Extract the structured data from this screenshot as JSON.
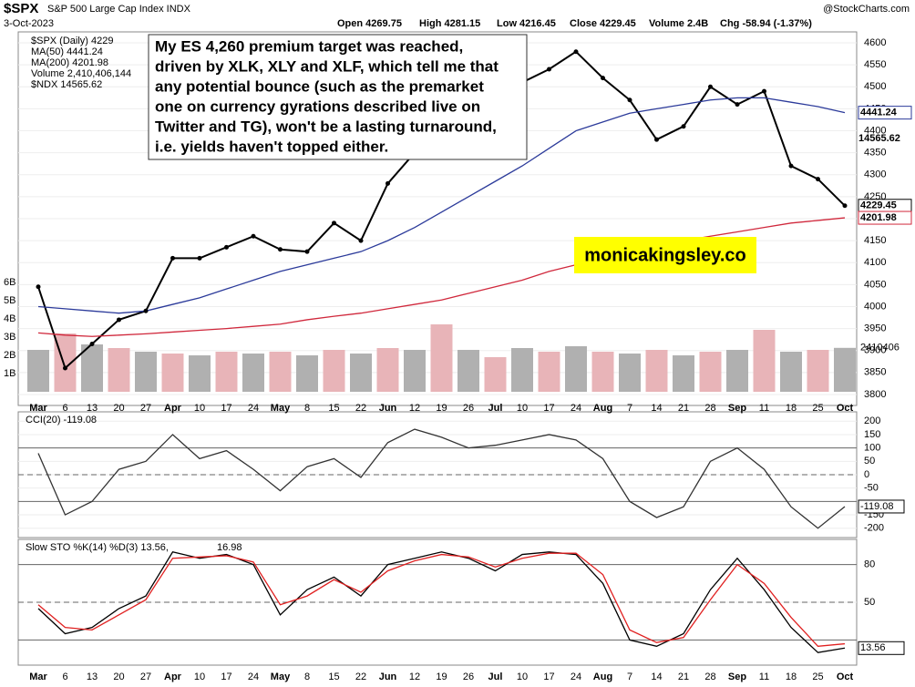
{
  "header": {
    "symbol": "$SPX",
    "name": "S&P 500 Large Cap Index INDX",
    "date": "3-Oct-2023",
    "open": "Open 4269.75",
    "high": "High 4281.15",
    "low": "Low 4216.45",
    "close": "Close 4229.45",
    "volume": "Volume 2.4B",
    "change": "Chg -58.94 (-1.37%)",
    "source": "@StockCharts.com"
  },
  "annotation": [
    "My ES 4,260 premium target was reached,",
    "driven by XLK, XLY and XLF, which tell me that",
    "any potential bounce (such as the premarket",
    "one on currency gyrations described live on",
    "Twitter and TG), won't be a lasting turnaround,",
    "i.e. yields haven't topped either."
  ],
  "watermark": "monicakingsley.co",
  "chart_data": [
    {
      "type": "line",
      "legend_extra": [
        "$NDX 14565.62"
      ],
      "ndx_tag": "14565.62",
      "categories": [
        "Mar",
        "6",
        "13",
        "20",
        "27",
        "Apr",
        "10",
        "17",
        "24",
        "May",
        "8",
        "15",
        "22",
        "Jun",
        "12",
        "19",
        "26",
        "Jul",
        "10",
        "17",
        "24",
        "Aug",
        "7",
        "14",
        "21",
        "28",
        "Sep",
        "11",
        "18",
        "25",
        "Oct"
      ],
      "series": [
        {
          "name": "$SPX (Daily) 4229",
          "color": "#000000",
          "values": [
            4045,
            3860,
            3915,
            3970,
            3990,
            4110,
            4110,
            4135,
            4160,
            4130,
            4125,
            4190,
            4150,
            4280,
            4350,
            4400,
            4390,
            4450,
            4510,
            4540,
            4580,
            4520,
            4470,
            4380,
            4410,
            4500,
            4460,
            4490,
            4320,
            4290,
            4229.45
          ]
        },
        {
          "name": "MA(50) 4441.24",
          "color": "#2b3a9a",
          "values": [
            4000,
            3995,
            3990,
            3985,
            3990,
            4005,
            4020,
            4040,
            4060,
            4080,
            4095,
            4110,
            4125,
            4150,
            4180,
            4215,
            4250,
            4285,
            4320,
            4360,
            4400,
            4420,
            4440,
            4450,
            4460,
            4470,
            4475,
            4475,
            4465,
            4455,
            4441.24
          ]
        },
        {
          "name": "MA(200) 4201.98",
          "color": "#d0283c",
          "values": [
            3940,
            3935,
            3932,
            3935,
            3938,
            3942,
            3946,
            3950,
            3955,
            3960,
            3970,
            3978,
            3985,
            3995,
            4005,
            4015,
            4030,
            4045,
            4060,
            4080,
            4095,
            4110,
            4125,
            4140,
            4150,
            4160,
            4170,
            4180,
            4190,
            4196,
            4201.98
          ]
        },
        {
          "name": "Volume 2,410,406,144",
          "color": "#b0b0b0",
          "axis": "y2",
          "values": [
            2.3,
            3.2,
            2.6,
            2.4,
            2.2,
            2.1,
            2.0,
            2.2,
            2.1,
            2.2,
            2.0,
            2.3,
            2.1,
            2.4,
            2.3,
            3.7,
            2.3,
            1.9,
            2.4,
            2.2,
            2.5,
            2.2,
            2.1,
            2.3,
            2.0,
            2.2,
            2.3,
            3.4,
            2.2,
            2.3,
            2.41
          ]
        }
      ],
      "ylim": [
        3775,
        4625
      ],
      "yticks": [
        3800,
        3850,
        3900,
        3950,
        4000,
        4050,
        4100,
        4150,
        4200,
        4250,
        4300,
        4350,
        4400,
        4450,
        4500,
        4550,
        4600
      ],
      "y2lim": [
        0,
        6
      ],
      "y2ticks": [
        {
          "value": 1,
          "label": "1B"
        },
        {
          "value": 2,
          "label": "2B"
        },
        {
          "value": 3,
          "label": "3B"
        },
        {
          "value": 4,
          "label": "4B"
        },
        {
          "value": 5,
          "label": "5B"
        },
        {
          "value": 6,
          "label": "6B"
        }
      ],
      "tags": [
        {
          "value": 4441.24,
          "label": "4441.24",
          "color": "#2b3a9a"
        },
        {
          "value": 4229.45,
          "label": "4229.45",
          "color": "#000000"
        },
        {
          "value": 4201.98,
          "label": "4201.98",
          "color": "#d0283c"
        }
      ],
      "volume_tag": "2410406"
    },
    {
      "type": "line",
      "title": "CCI(20) -119.08",
      "tag": "-119.08",
      "ylim": [
        -235,
        235
      ],
      "yticks": [
        200,
        150,
        100,
        50,
        0,
        -50,
        -150,
        -200
      ],
      "ref_lines": [
        100,
        0,
        -100
      ],
      "series": [
        {
          "name": "CCI(20)",
          "color": "#333333",
          "values": [
            80,
            -150,
            -100,
            20,
            50,
            150,
            60,
            90,
            20,
            -60,
            30,
            60,
            -10,
            120,
            170,
            140,
            100,
            110,
            130,
            150,
            130,
            60,
            -100,
            -160,
            -120,
            50,
            100,
            20,
            -120,
            -200,
            -119.08
          ]
        }
      ]
    },
    {
      "type": "line",
      "title": "Slow STO %K(14) %D(3) 13.56,",
      "title_d": "16.98",
      "tag": "13.56",
      "ylim": [
        0,
        100
      ],
      "yticks": [
        80,
        50
      ],
      "ref_lines": [
        80,
        50,
        20
      ],
      "categories": [
        "Mar",
        "6",
        "13",
        "20",
        "27",
        "Apr",
        "10",
        "17",
        "24",
        "May",
        "8",
        "15",
        "22",
        "Jun",
        "12",
        "19",
        "26",
        "Jul",
        "10",
        "17",
        "24",
        "Aug",
        "7",
        "14",
        "21",
        "28",
        "Sep",
        "11",
        "18",
        "25",
        "Oct"
      ],
      "series": [
        {
          "name": "%K(14)",
          "color": "#000000",
          "values": [
            45,
            25,
            30,
            45,
            55,
            90,
            85,
            88,
            80,
            40,
            60,
            70,
            55,
            80,
            85,
            90,
            85,
            75,
            88,
            90,
            88,
            65,
            20,
            15,
            25,
            60,
            85,
            60,
            30,
            10,
            13.56
          ]
        },
        {
          "name": "%D(3)",
          "color": "#e02020",
          "values": [
            48,
            30,
            28,
            40,
            52,
            85,
            86,
            87,
            82,
            48,
            55,
            68,
            58,
            75,
            83,
            88,
            86,
            78,
            85,
            89,
            89,
            72,
            28,
            18,
            22,
            52,
            80,
            65,
            38,
            15,
            16.98
          ]
        }
      ]
    }
  ]
}
